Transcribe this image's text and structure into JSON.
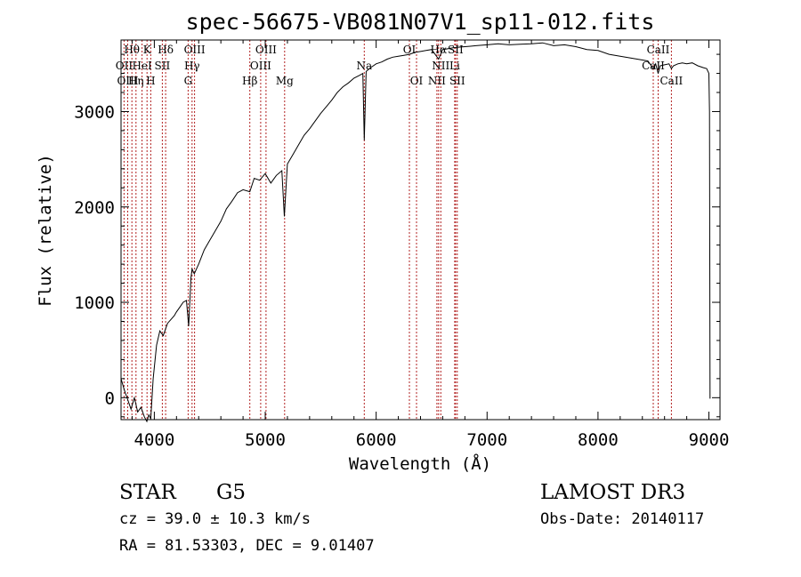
{
  "chart_data": {
    "type": "line",
    "title": "spec-56675-VB081N07V1_sp11-012.fits",
    "xlabel": "Wavelength (Å)",
    "ylabel": "Flux (relative)",
    "xlim": [
      3700,
      9100
    ],
    "ylim": [
      -230,
      3750
    ],
    "xticks": [
      4000,
      5000,
      6000,
      7000,
      8000,
      9000
    ],
    "xtick_labels": [
      "4000",
      "5000",
      "6000",
      "7000",
      "8000",
      "9000"
    ],
    "yticks": [
      0,
      1000,
      2000,
      3000
    ],
    "ytick_labels": [
      "0",
      "1000",
      "2000",
      "3000"
    ],
    "line_color": "#000000",
    "marker_color": "#b22222",
    "spectrum": {
      "name": "flux",
      "x": [
        3700,
        3730,
        3760,
        3790,
        3820,
        3850,
        3880,
        3910,
        3933,
        3950,
        3968,
        3990,
        4020,
        4050,
        4080,
        4101,
        4120,
        4150,
        4180,
        4200,
        4230,
        4260,
        4290,
        4310,
        4330,
        4340,
        4360,
        4400,
        4450,
        4500,
        4550,
        4600,
        4650,
        4700,
        4750,
        4800,
        4861,
        4900,
        4950,
        5000,
        5050,
        5100,
        5150,
        5172,
        5200,
        5250,
        5300,
        5350,
        5400,
        5450,
        5500,
        5550,
        5600,
        5650,
        5700,
        5750,
        5800,
        5850,
        5880,
        5893,
        5910,
        5950,
        6000,
        6050,
        6100,
        6150,
        6200,
        6250,
        6300,
        6350,
        6400,
        6450,
        6500,
        6563,
        6600,
        6650,
        6700,
        6750,
        6800,
        6850,
        6900,
        6950,
        7000,
        7100,
        7200,
        7300,
        7400,
        7500,
        7600,
        7700,
        7800,
        7900,
        8000,
        8100,
        8200,
        8300,
        8400,
        8450,
        8498,
        8520,
        8542,
        8560,
        8600,
        8640,
        8662,
        8680,
        8720,
        8760,
        8800,
        8850,
        8900,
        8950,
        8980,
        9000,
        9005,
        9010
      ],
      "values": [
        200,
        80,
        -20,
        -120,
        0,
        -150,
        -100,
        -200,
        -250,
        -180,
        -220,
        200,
        550,
        700,
        650,
        720,
        780,
        820,
        860,
        900,
        950,
        1000,
        1020,
        750,
        1250,
        1350,
        1300,
        1400,
        1550,
        1650,
        1750,
        1850,
        1980,
        2060,
        2150,
        2180,
        2160,
        2300,
        2280,
        2350,
        2250,
        2330,
        2380,
        1900,
        2450,
        2550,
        2650,
        2750,
        2820,
        2900,
        2980,
        3050,
        3120,
        3200,
        3260,
        3300,
        3350,
        3380,
        3400,
        2700,
        3420,
        3460,
        3500,
        3520,
        3550,
        3570,
        3580,
        3590,
        3600,
        3620,
        3630,
        3640,
        3650,
        3550,
        3650,
        3660,
        3670,
        3675,
        3680,
        3685,
        3690,
        3695,
        3700,
        3710,
        3700,
        3705,
        3710,
        3720,
        3690,
        3700,
        3680,
        3650,
        3640,
        3600,
        3580,
        3560,
        3540,
        3530,
        3450,
        3500,
        3400,
        3480,
        3490,
        3500,
        3450,
        3480,
        3500,
        3510,
        3500,
        3510,
        3480,
        3460,
        3450,
        3400,
        3000,
        -10
      ]
    },
    "spectral_lines": [
      {
        "label": "Hθ",
        "wavelength": 3798,
        "row": 0
      },
      {
        "label": "K",
        "wavelength": 3934,
        "row": 0
      },
      {
        "label": "Hδ",
        "wavelength": 4102,
        "row": 0
      },
      {
        "label": "OIII",
        "wavelength": 4363,
        "row": 0
      },
      {
        "label": "OIII",
        "wavelength": 5007,
        "row": 0
      },
      {
        "label": "OI",
        "wavelength": 6300,
        "row": 0
      },
      {
        "label": "Hα",
        "wavelength": 6563,
        "row": 0
      },
      {
        "label": "SII",
        "wavelength": 6716,
        "row": 0
      },
      {
        "label": "CaII",
        "wavelength": 8542,
        "row": 0
      },
      {
        "label": "OII",
        "wavelength": 3727,
        "row": 1
      },
      {
        "label": "HeI",
        "wavelength": 3889,
        "row": 1
      },
      {
        "label": "SII",
        "wavelength": 4072,
        "row": 1
      },
      {
        "label": "Hγ",
        "wavelength": 4340,
        "row": 1
      },
      {
        "label": "OIII",
        "wavelength": 4959,
        "row": 1
      },
      {
        "label": "NII",
        "wavelength": 6583,
        "row": 1
      },
      {
        "label": "Li",
        "wavelength": 6708,
        "row": 1
      },
      {
        "label": "CaII",
        "wavelength": 8498,
        "row": 1
      },
      {
        "label": "Na",
        "wavelength": 5893,
        "row": 1.3
      },
      {
        "label": "OIII",
        "wavelength": 3760,
        "row": 2
      },
      {
        "label": "Hη",
        "wavelength": 3835,
        "row": 2
      },
      {
        "label": "H",
        "wavelength": 3968,
        "row": 2
      },
      {
        "label": "G",
        "wavelength": 4305,
        "row": 2
      },
      {
        "label": "Hβ",
        "wavelength": 4861,
        "row": 2
      },
      {
        "label": "Mg",
        "wavelength": 5175,
        "row": 2
      },
      {
        "label": "OI",
        "wavelength": 6364,
        "row": 2
      },
      {
        "label": "NII",
        "wavelength": 6548,
        "row": 2
      },
      {
        "label": "SII",
        "wavelength": 6731,
        "row": 2
      },
      {
        "label": "CaII",
        "wavelength": 8662,
        "row": 2
      }
    ]
  },
  "info": {
    "object_type": "STAR",
    "subclass": "G5",
    "survey": "LAMOST DR3",
    "redshift": "cz = 39.0 ± 10.3 km/s",
    "obs_date": "Obs-Date: 20140117",
    "coordinates": "RA =  81.53303, DEC =   9.01407"
  }
}
